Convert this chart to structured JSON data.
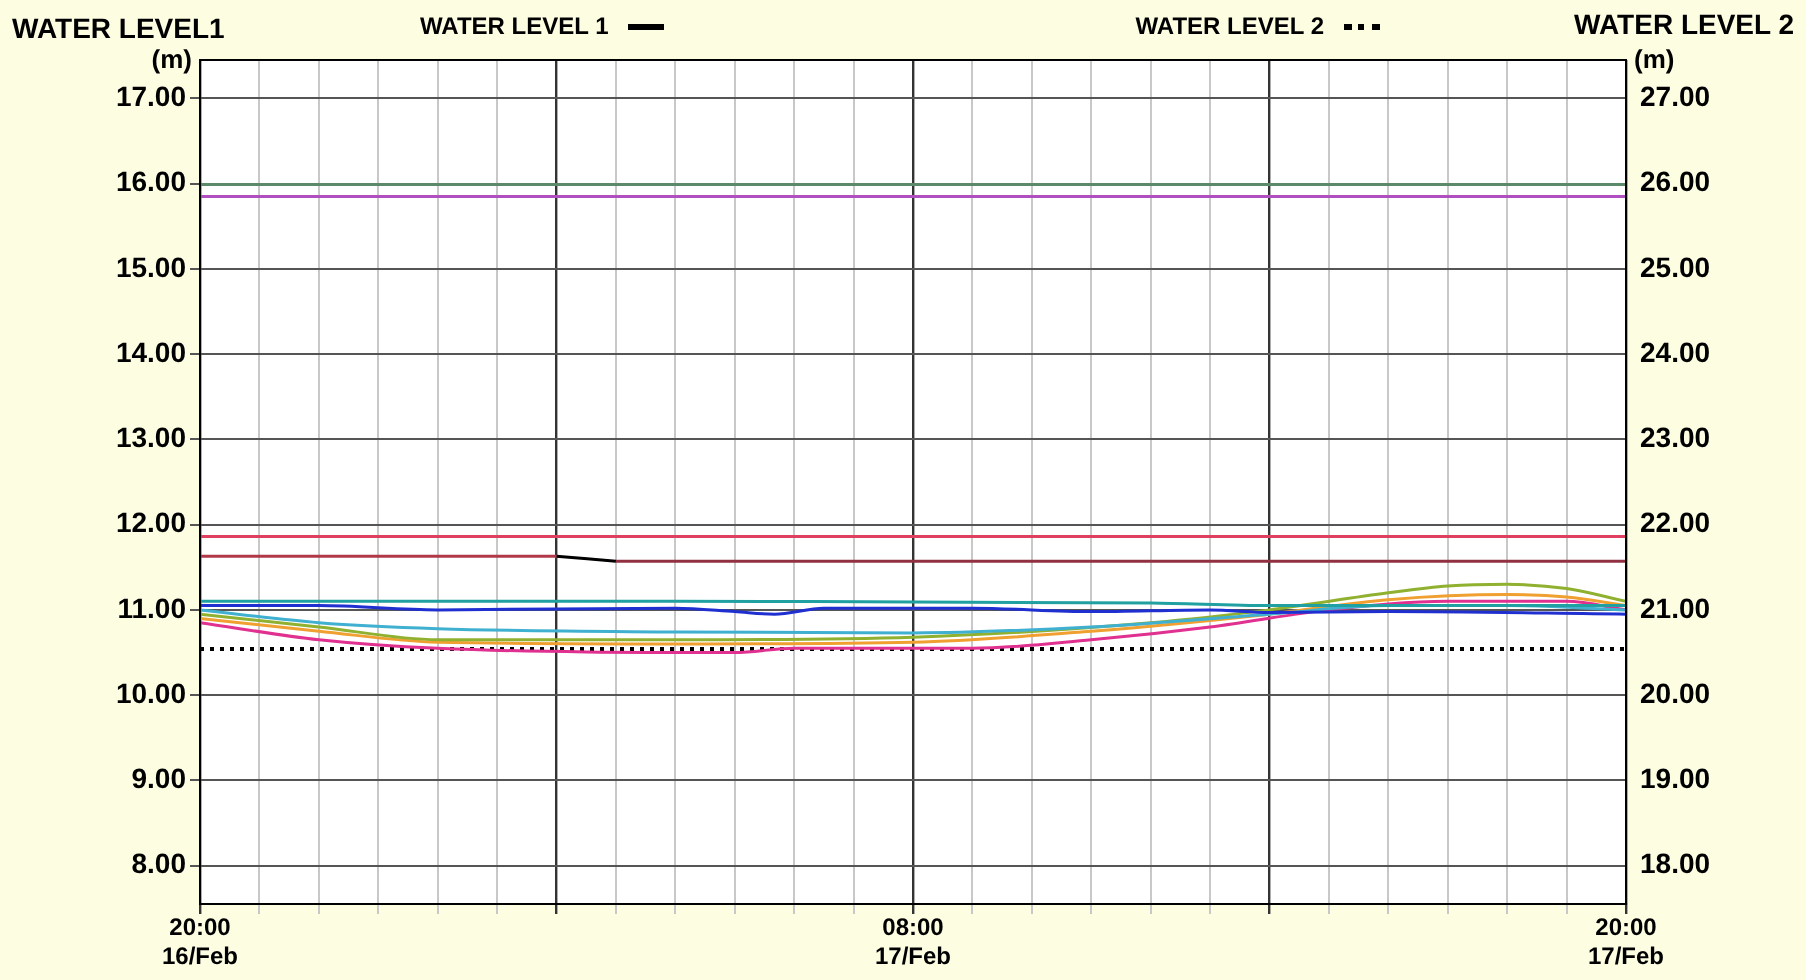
{
  "chart_data": {
    "type": "line",
    "ylabel": "WATER LEVEL1",
    "y2label": "WATER LEVEL 2",
    "annotations": [
      "(m)",
      "(m)"
    ],
    "xlim": [
      "--02-16T20:00",
      "--02-17T20:00"
    ],
    "xticks": [
      {
        "value": "--02-16T20:00",
        "label": "20:00\n16/Feb"
      },
      {
        "value": "--02-16T21:00",
        "label": null
      },
      {
        "value": "--02-16T22:00",
        "label": null
      },
      {
        "value": "--02-16T23:00",
        "label": null
      },
      {
        "value": "--02-17T00:00",
        "label": null
      },
      {
        "value": "--02-17T01:00",
        "label": null
      },
      {
        "value": "--02-17T02:00",
        "label": null
      },
      {
        "value": "--02-17T03:00",
        "label": null
      },
      {
        "value": "--02-17T04:00",
        "label": null
      },
      {
        "value": "--02-17T05:00",
        "label": null
      },
      {
        "value": "--02-17T06:00",
        "label": null
      },
      {
        "value": "--02-17T07:00",
        "label": null
      },
      {
        "value": "--02-17T08:00",
        "label": "08:00\n17/Feb"
      },
      {
        "value": "--02-17T09:00",
        "label": null
      },
      {
        "value": "--02-17T10:00",
        "label": null
      },
      {
        "value": "--02-17T11:00",
        "label": null
      },
      {
        "value": "--02-17T12:00",
        "label": null
      },
      {
        "value": "--02-17T13:00",
        "label": null
      },
      {
        "value": "--02-17T14:00",
        "label": null
      },
      {
        "value": "--02-17T15:00",
        "label": null
      },
      {
        "value": "--02-17T16:00",
        "label": null
      },
      {
        "value": "--02-17T17:00",
        "label": null
      },
      {
        "value": "--02-17T18:00",
        "label": null
      },
      {
        "value": "--02-17T19:00",
        "label": null
      },
      {
        "value": "--02-17T20:00",
        "label": "20:00\n17/Feb"
      }
    ],
    "ylim": [
      7.55,
      17.45
    ],
    "yticks": [
      {
        "value": 8,
        "label": "8.00"
      },
      {
        "value": 9,
        "label": "9.00"
      },
      {
        "value": 10,
        "label": "10.00"
      },
      {
        "value": 11,
        "label": "11.00"
      },
      {
        "value": 12,
        "label": "12.00"
      },
      {
        "value": 13,
        "label": "13.00"
      },
      {
        "value": 14,
        "label": "14.00"
      },
      {
        "value": 15,
        "label": "15.00"
      },
      {
        "value": 16,
        "label": "16.00"
      },
      {
        "value": 17,
        "label": "17.00"
      }
    ],
    "y2lim": [
      17.55,
      27.45
    ],
    "y2ticks": [
      {
        "value": 18,
        "label": "18.00"
      },
      {
        "value": 19,
        "label": "19.00"
      },
      {
        "value": 20,
        "label": "20.00"
      },
      {
        "value": 21,
        "label": "21.00"
      },
      {
        "value": 22,
        "label": "22.00"
      },
      {
        "value": 23,
        "label": "23.00"
      },
      {
        "value": 24,
        "label": "24.00"
      },
      {
        "value": 25,
        "label": "25.00"
      },
      {
        "value": 26,
        "label": "26.00"
      },
      {
        "value": 27,
        "label": "27.00"
      }
    ],
    "grid": true,
    "legend": "top",
    "marker": "none",
    "series": [
      {
        "color": "#5a8a6a",
        "x": [
          "--02-16T20:00",
          "--02-17T20:00"
        ],
        "values": [
          15.99,
          15.99
        ]
      },
      {
        "color": "#b050c0",
        "x": [
          "--02-16T20:00",
          "--02-17T20:00"
        ],
        "values": [
          15.85,
          15.85
        ]
      },
      {
        "color": "#e04060",
        "x": [
          "--02-16T20:00",
          "--02-17T20:00"
        ],
        "values": [
          11.86,
          11.86
        ]
      },
      {
        "color": "#b03848",
        "x": [
          "--02-16T20:00",
          "--02-17T02:00"
        ],
        "values": [
          11.63,
          11.63
        ]
      },
      {
        "name": "WATER LEVEL 1",
        "color": "#000000",
        "x": [
          "--02-17T02:00",
          "--02-17T03:00"
        ],
        "values": [
          11.63,
          11.57
        ]
      },
      {
        "color": "#903040",
        "x": [
          "--02-17T03:00",
          "--02-17T20:00"
        ],
        "values": [
          11.57,
          11.57
        ]
      },
      {
        "color": "#20a0a0",
        "x": [
          "--02-16T20:00",
          "--02-17T04:00",
          "--02-17T12:00",
          "--02-17T14:00",
          "--02-17T20:00"
        ],
        "values": [
          11.1,
          11.1,
          11.08,
          11.05,
          11.05
        ]
      },
      {
        "color": "#2030d0",
        "x": [
          "--02-16T20:00",
          "--02-16T22:00",
          "--02-17T00:00",
          "--02-17T04:00",
          "--02-17T05:00",
          "--02-17T05:40",
          "--02-17T06:30",
          "--02-17T09:00",
          "--02-17T11:00",
          "--02-17T13:00",
          "--02-17T14:00",
          "--02-17T16:00",
          "--02-17T20:00"
        ],
        "values": [
          11.05,
          11.05,
          11.0,
          11.02,
          10.98,
          10.95,
          11.02,
          11.02,
          10.98,
          11.0,
          10.97,
          10.98,
          10.95
        ]
      },
      {
        "color": "#40b0d0",
        "x": [
          "--02-16T20:00",
          "--02-16T22:00",
          "--02-17T00:00",
          "--02-17T04:00",
          "--02-17T08:00",
          "--02-17T11:00",
          "--02-17T14:00",
          "--02-17T16:00",
          "--02-17T18:00",
          "--02-17T20:00"
        ],
        "values": [
          11.0,
          10.85,
          10.78,
          10.74,
          10.73,
          10.8,
          10.95,
          11.05,
          11.05,
          11.0
        ]
      },
      {
        "color": "#90b030",
        "x": [
          "--02-16T20:00",
          "--02-16T22:00",
          "--02-17T00:00",
          "--02-17T04:00",
          "--02-17T08:00",
          "--02-17T12:00",
          "--02-17T14:00",
          "--02-17T16:00",
          "--02-17T17:00",
          "--02-17T18:00",
          "--02-17T19:00",
          "--02-17T20:00"
        ],
        "values": [
          10.95,
          10.8,
          10.65,
          10.65,
          10.68,
          10.85,
          11.0,
          11.2,
          11.28,
          11.3,
          11.25,
          11.1
        ]
      },
      {
        "color": "#f0a030",
        "x": [
          "--02-16T20:00",
          "--02-16T22:00",
          "--02-17T00:00",
          "--02-17T04:00",
          "--02-17T08:00",
          "--02-17T11:00",
          "--02-17T14:00",
          "--02-17T16:00",
          "--02-17T18:00",
          "--02-17T19:00",
          "--02-17T20:00"
        ],
        "values": [
          10.9,
          10.75,
          10.62,
          10.6,
          10.62,
          10.75,
          10.95,
          11.12,
          11.18,
          11.15,
          11.05
        ]
      },
      {
        "color": "#e03090",
        "x": [
          "--02-16T20:00",
          "--02-16T22:00",
          "--02-17T00:00",
          "--02-17T05:00",
          "--02-17T06:00",
          "--02-17T09:00",
          "--02-17T11:00",
          "--02-17T13:00",
          "--02-17T15:00",
          "--02-17T17:00",
          "--02-17T19:00",
          "--02-17T20:00"
        ],
        "values": [
          10.85,
          10.65,
          10.55,
          10.5,
          10.55,
          10.55,
          10.65,
          10.8,
          11.0,
          11.1,
          11.1,
          11.0
        ]
      },
      {
        "name": "WATER LEVEL 2",
        "color": "#000000",
        "axis": "y2",
        "line_style": "dotted",
        "x": [
          "--02-16T20:00",
          "--02-17T20:00"
        ],
        "values": [
          20.54,
          20.54
        ]
      }
    ]
  }
}
